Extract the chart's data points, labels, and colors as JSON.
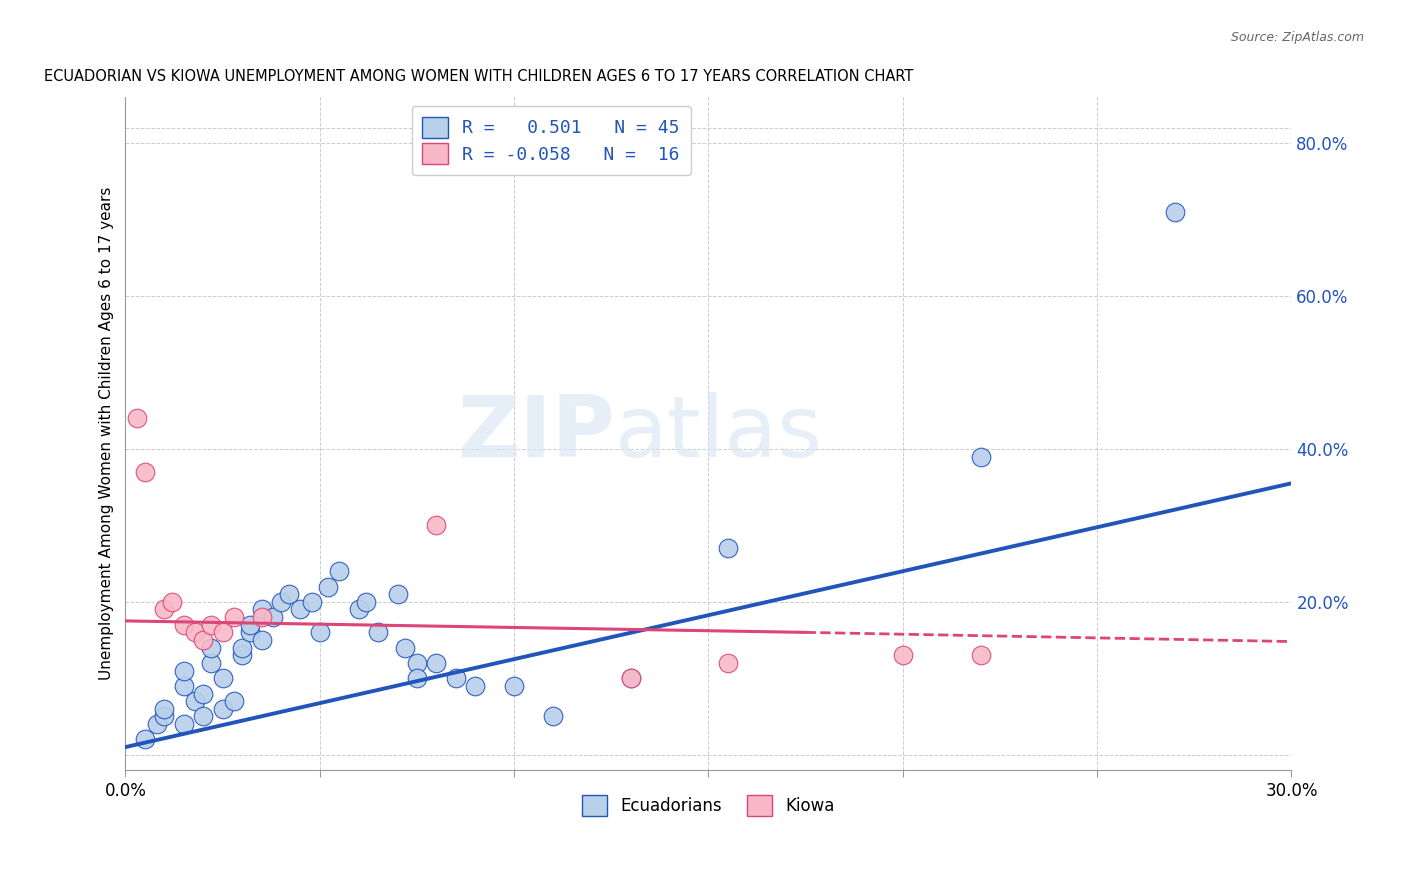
{
  "title": "ECUADORIAN VS KIOWA UNEMPLOYMENT AMONG WOMEN WITH CHILDREN AGES 6 TO 17 YEARS CORRELATION CHART",
  "source": "Source: ZipAtlas.com",
  "ylabel": "Unemployment Among Women with Children Ages 6 to 17 years",
  "ylabel_right_ticks": [
    "80.0%",
    "60.0%",
    "40.0%",
    "20.0%",
    ""
  ],
  "ylabel_right_vals": [
    0.8,
    0.6,
    0.4,
    0.2,
    0.0
  ],
  "xlim": [
    0.0,
    0.3
  ],
  "ylim": [
    -0.02,
    0.86
  ],
  "blue_r": 0.501,
  "blue_n": 45,
  "pink_r": -0.058,
  "pink_n": 16,
  "blue_color": "#b8d0ea",
  "blue_line_color": "#2255bb",
  "pink_color": "#f8b8c8",
  "pink_line_color": "#dd4477",
  "blue_scatter": [
    [
      0.005,
      0.02
    ],
    [
      0.008,
      0.04
    ],
    [
      0.01,
      0.05
    ],
    [
      0.01,
      0.06
    ],
    [
      0.015,
      0.04
    ],
    [
      0.015,
      0.09
    ],
    [
      0.015,
      0.11
    ],
    [
      0.018,
      0.07
    ],
    [
      0.02,
      0.05
    ],
    [
      0.02,
      0.08
    ],
    [
      0.022,
      0.12
    ],
    [
      0.022,
      0.14
    ],
    [
      0.025,
      0.06
    ],
    [
      0.025,
      0.1
    ],
    [
      0.028,
      0.07
    ],
    [
      0.03,
      0.13
    ],
    [
      0.03,
      0.14
    ],
    [
      0.032,
      0.16
    ],
    [
      0.032,
      0.17
    ],
    [
      0.035,
      0.15
    ],
    [
      0.035,
      0.19
    ],
    [
      0.038,
      0.18
    ],
    [
      0.04,
      0.2
    ],
    [
      0.042,
      0.21
    ],
    [
      0.045,
      0.19
    ],
    [
      0.048,
      0.2
    ],
    [
      0.05,
      0.16
    ],
    [
      0.052,
      0.22
    ],
    [
      0.055,
      0.24
    ],
    [
      0.06,
      0.19
    ],
    [
      0.062,
      0.2
    ],
    [
      0.065,
      0.16
    ],
    [
      0.07,
      0.21
    ],
    [
      0.072,
      0.14
    ],
    [
      0.075,
      0.12
    ],
    [
      0.075,
      0.1
    ],
    [
      0.08,
      0.12
    ],
    [
      0.085,
      0.1
    ],
    [
      0.09,
      0.09
    ],
    [
      0.1,
      0.09
    ],
    [
      0.11,
      0.05
    ],
    [
      0.13,
      0.1
    ],
    [
      0.155,
      0.27
    ],
    [
      0.22,
      0.39
    ],
    [
      0.27,
      0.71
    ]
  ],
  "pink_scatter": [
    [
      0.003,
      0.44
    ],
    [
      0.005,
      0.37
    ],
    [
      0.01,
      0.19
    ],
    [
      0.012,
      0.2
    ],
    [
      0.015,
      0.17
    ],
    [
      0.018,
      0.16
    ],
    [
      0.02,
      0.15
    ],
    [
      0.022,
      0.17
    ],
    [
      0.025,
      0.16
    ],
    [
      0.028,
      0.18
    ],
    [
      0.035,
      0.18
    ],
    [
      0.08,
      0.3
    ],
    [
      0.13,
      0.1
    ],
    [
      0.155,
      0.12
    ],
    [
      0.2,
      0.13
    ],
    [
      0.22,
      0.13
    ]
  ],
  "blue_trend": [
    0.0,
    0.3,
    0.01,
    0.355
  ],
  "pink_trend_solid": [
    0.0,
    0.175,
    0.175,
    0.16
  ],
  "pink_trend_dashed": [
    0.175,
    0.16,
    0.3,
    0.148
  ],
  "watermark_zip": "ZIP",
  "watermark_atlas": "atlas",
  "legend_label_blue": "Ecuadorians",
  "legend_label_pink": "Kiowa",
  "background_color": "#ffffff",
  "grid_color": "#cccccc"
}
